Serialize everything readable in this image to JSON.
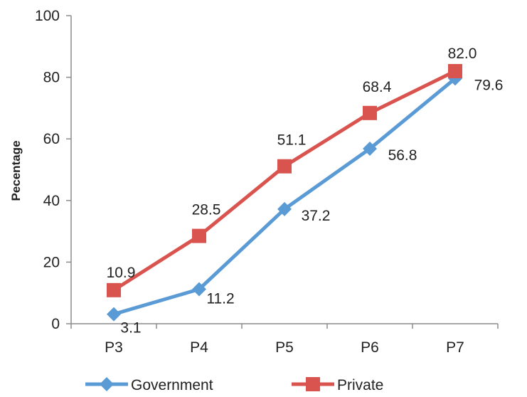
{
  "chart_data": {
    "type": "line",
    "title": "",
    "xlabel": "",
    "ylabel": "Pecentage",
    "categories": [
      "P3",
      "P4",
      "P5",
      "P6",
      "P7"
    ],
    "ylim": [
      0,
      100
    ],
    "yticks": [
      0,
      20,
      40,
      60,
      80,
      100
    ],
    "grid": false,
    "legend_position": "bottom",
    "series": [
      {
        "name": "Government",
        "values": [
          3.1,
          11.2,
          37.2,
          56.8,
          79.6
        ],
        "labels": [
          "3.1",
          "11.2",
          "37.2",
          "56.8",
          "79.6"
        ],
        "color": "#5B9BD5",
        "marker": "diamond"
      },
      {
        "name": "Private",
        "values": [
          10.9,
          28.5,
          51.1,
          68.4,
          82.0
        ],
        "labels": [
          "10.9",
          "28.5",
          "51.1",
          "68.4",
          "82.0"
        ],
        "color": "#D9534F",
        "marker": "square"
      }
    ]
  }
}
